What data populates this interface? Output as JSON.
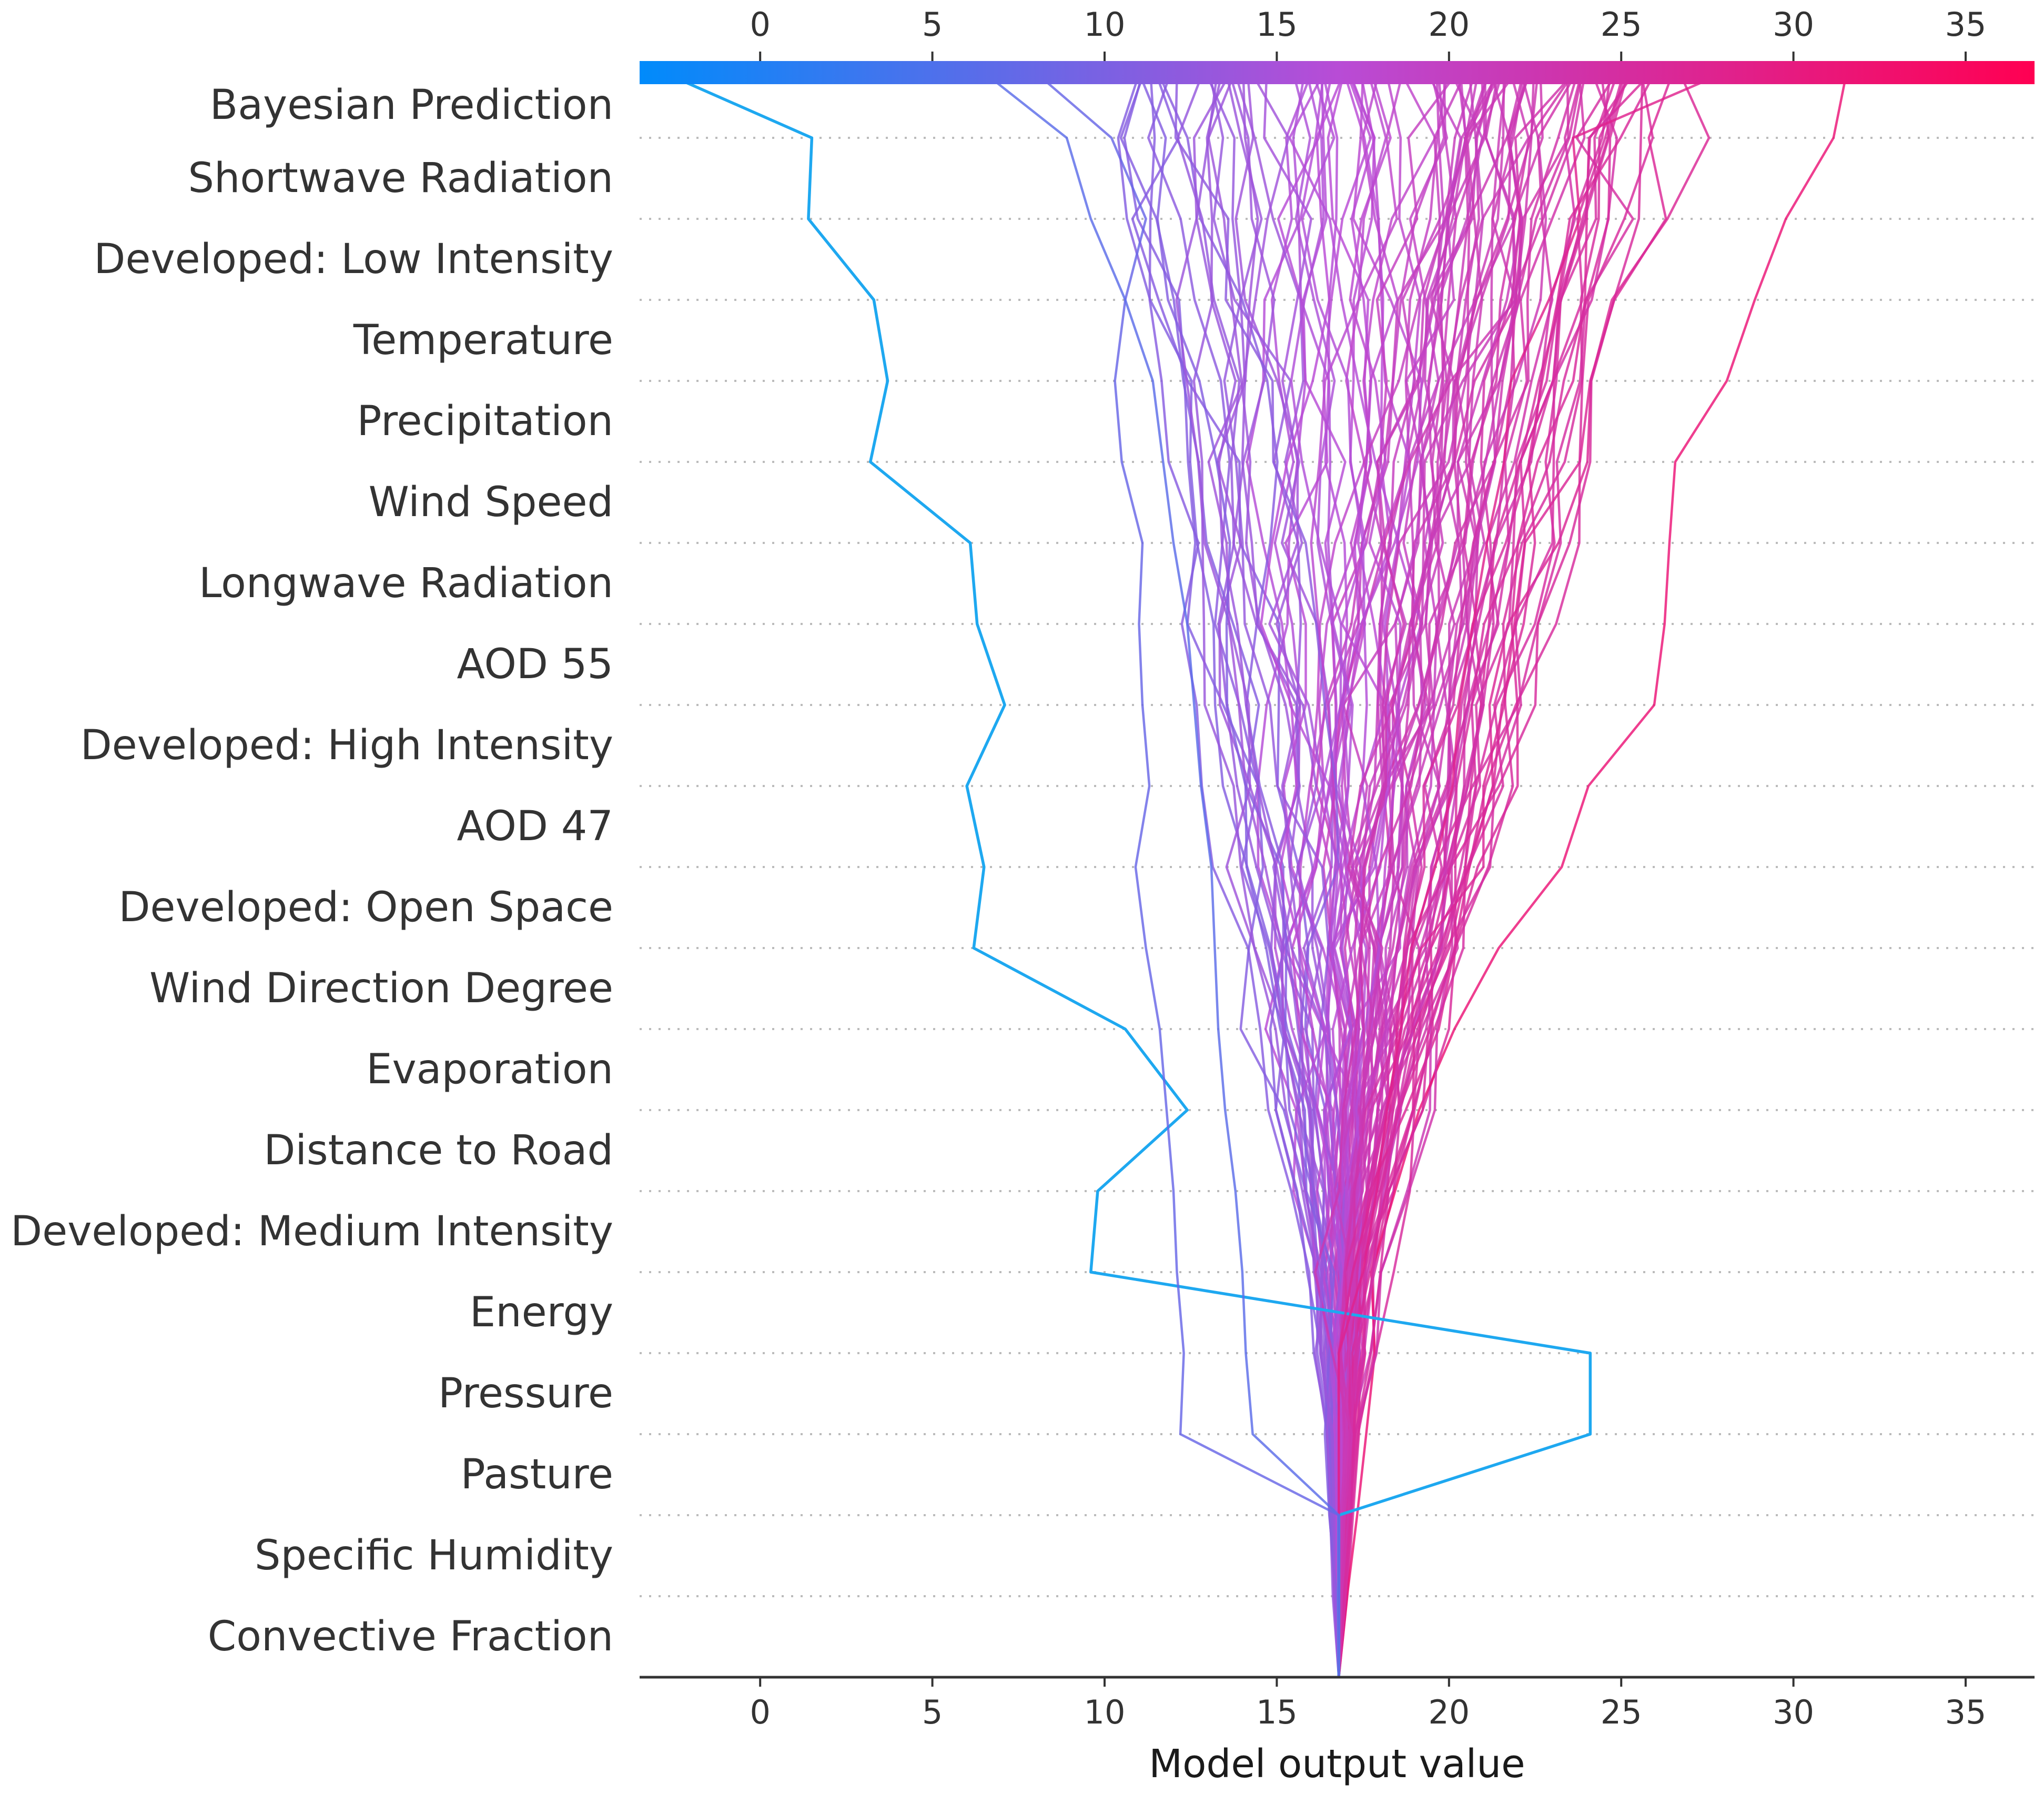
{
  "chart_data": {
    "type": "line",
    "subtype": "shap-decision-plot",
    "xlabel": "Model output value",
    "xlim": [
      -3.5,
      37
    ],
    "xticks": [
      0,
      5,
      10,
      15,
      20,
      25,
      30,
      35
    ],
    "base_value": 16.8,
    "features": [
      "Bayesian Prediction",
      "Shortwave Radiation",
      "Developed: Low Intensity",
      "Temperature",
      "Precipitation",
      "Wind Speed",
      "Longwave Radiation",
      "AOD 55",
      "Developed: High Intensity",
      "AOD 47",
      "Developed: Open Space",
      "Wind Direction Degree",
      "Evaporation",
      "Distance to Road",
      "Developed: Medium Intensity",
      "Energy",
      "Pressure",
      "Pasture",
      "Specific Humidity",
      "Convective Fraction"
    ],
    "colorbar": {
      "low_color": "#008bfb",
      "high_color": "#ff0052"
    },
    "num_generated_paths": 110,
    "series": [
      {
        "name": "low-outlier",
        "final": -2.8,
        "values": [
          16.8,
          16.8,
          16.8,
          24.1,
          24.1,
          9.6,
          9.8,
          12.4,
          10.6,
          6.2,
          6.5,
          6.0,
          7.1,
          6.3,
          6.1,
          3.2,
          3.7,
          3.3,
          1.4,
          1.5,
          -2.8
        ]
      },
      {
        "name": "path-a",
        "final": 26.5,
        "values": [
          16.8,
          16.8,
          16.8,
          16.8,
          16.8,
          17.2,
          17.8,
          18.3,
          18.5,
          19.2,
          21.0,
          21.0,
          21.6,
          21.9,
          22.2,
          23.8,
          24.1,
          24.8,
          26.3,
          25.8,
          26.5
        ]
      },
      {
        "name": "path-b",
        "final": 28.0,
        "values": [
          16.8,
          16.8,
          16.8,
          16.8,
          16.8,
          17.5,
          17.9,
          18.2,
          18.6,
          18.9,
          19.6,
          20.1,
          20.3,
          20.7,
          21.1,
          21.6,
          21.8,
          22.9,
          23.8,
          23.6,
          28.0
        ]
      },
      {
        "name": "path-c",
        "final": 8.0,
        "values": [
          16.8,
          16.8,
          16.8,
          12.2,
          12.3,
          12.1,
          12.0,
          11.8,
          11.6,
          11.2,
          10.9,
          11.3,
          11.1,
          11.0,
          11.1,
          10.5,
          10.3,
          10.6,
          11.2,
          10.2,
          8.0
        ]
      },
      {
        "name": "path-d",
        "final": 6.5,
        "values": [
          16.8,
          16.8,
          16.8,
          14.3,
          14.1,
          14.0,
          13.8,
          13.5,
          13.3,
          13.2,
          13.1,
          12.8,
          12.6,
          12.4,
          12.0,
          11.7,
          11.4,
          10.6,
          9.6,
          8.9,
          6.5
        ]
      }
    ]
  }
}
